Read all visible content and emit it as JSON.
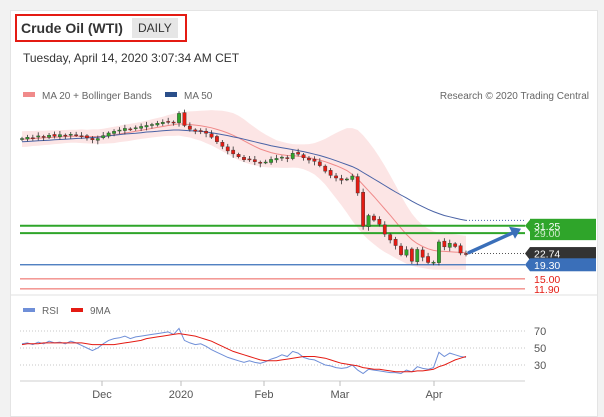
{
  "header": {
    "instrument": "Crude Oil (WTI)",
    "period": "DAILY",
    "datetime": "Tuesday, April 14, 2020 3:07:34 AM CET"
  },
  "legend": {
    "ma20_bollinger": "MA 20 + Bollinger Bands",
    "ma50": "MA 50",
    "credit": "Research © 2020 Trading Central",
    "rsi": "RSI",
    "rsi_ma": "9MA"
  },
  "colors": {
    "bullish": "#2fa52a",
    "bearish": "#e41b13",
    "support": "#3a6fb9",
    "ma20": "#f08a8a",
    "ma50": "#4a63a6",
    "bollinger_fill": "#fbe0e0",
    "rsi": "#6f8fd8",
    "rsi_ma": "#e41b13",
    "arrow": "#3a6fb9",
    "last_price_tag": "#333333"
  },
  "chart_data": [
    {
      "type": "candlestick",
      "title": "Crude Oil (WTI)",
      "x_ticks": [
        "Dec",
        "2020",
        "Feb",
        "Mar",
        "Apr"
      ],
      "levels": {
        "resistance_1": 31.25,
        "resistance_2": 29.0,
        "last_price": 22.74,
        "support_1": 19.3,
        "support_2": 15.0,
        "support_3": 11.9
      },
      "level_labels": {
        "resistance_1": "31.25",
        "resistance_2": "29.00",
        "last_price": "22.74",
        "support_1": "19.30",
        "support_2": "15.00",
        "support_3": "11.90"
      },
      "forecast_direction": "up",
      "y_range": [
        8,
        70
      ],
      "closes": [
        58.0,
        58.4,
        58.2,
        58.8,
        58.5,
        59.0,
        58.7,
        59.2,
        58.9,
        59.3,
        59.0,
        58.6,
        58.2,
        57.6,
        58.0,
        58.9,
        59.7,
        60.2,
        60.6,
        61.1,
        60.8,
        61.3,
        61.7,
        62.0,
        62.3,
        62.7,
        63.0,
        63.2,
        63.0,
        65.7,
        62.0,
        60.8,
        60.2,
        60.4,
        59.6,
        58.4,
        57.0,
        55.6,
        54.2,
        53.3,
        52.4,
        51.5,
        51.7,
        50.9,
        50.4,
        50.8,
        51.6,
        51.9,
        52.3,
        52.0,
        53.5,
        53.2,
        52.1,
        51.4,
        51.0,
        49.7,
        48.0,
        46.7,
        45.9,
        45.2,
        45.6,
        46.5,
        41.3,
        31.1,
        34.4,
        33.0,
        31.7,
        28.7,
        26.9,
        25.2,
        22.4,
        23.9,
        20.4,
        24.0,
        21.6,
        20.0,
        20.1,
        26.3,
        24.8,
        25.9,
        24.9,
        22.9,
        22.74
      ],
      "ma50": [
        57.0,
        57.1,
        57.2,
        57.3,
        57.4,
        57.5,
        57.6,
        57.7,
        57.8,
        57.9,
        58.0,
        58.1,
        58.2,
        58.3,
        58.4,
        58.6,
        58.8,
        59.0,
        59.2,
        59.4,
        59.5,
        59.6,
        59.8,
        60.0,
        60.1,
        60.2,
        60.4,
        60.5,
        60.6,
        60.6,
        60.5,
        60.4,
        60.3,
        60.2,
        60.0,
        59.8,
        59.5,
        59.2,
        58.9,
        58.5,
        58.2,
        57.8,
        57.4,
        57.0,
        56.6,
        56.2,
        55.8,
        55.5,
        55.2,
        54.9,
        54.6,
        54.3,
        54.0,
        53.6,
        53.2,
        52.8,
        52.3,
        51.8,
        51.2,
        50.6,
        50.0,
        49.4,
        48.6,
        47.6,
        46.6,
        45.6,
        44.6,
        43.6,
        42.6,
        41.6,
        40.7,
        39.8,
        38.8,
        37.9,
        37.1,
        36.3,
        35.6,
        35.0,
        34.4,
        34.0,
        33.6,
        33.2,
        32.9
      ],
      "ma20": [
        57.8,
        57.9,
        58.0,
        58.1,
        58.2,
        58.3,
        58.4,
        58.5,
        58.6,
        58.7,
        58.7,
        58.7,
        58.6,
        58.6,
        58.6,
        58.7,
        58.9,
        59.1,
        59.4,
        59.7,
        59.9,
        60.2,
        60.5,
        60.8,
        61.1,
        61.4,
        61.7,
        62.0,
        62.2,
        62.5,
        62.4,
        62.3,
        62.1,
        61.9,
        61.6,
        61.3,
        60.8,
        60.3,
        59.7,
        59.0,
        58.2,
        57.3,
        56.4,
        55.6,
        54.8,
        54.2,
        53.7,
        53.3,
        53.0,
        52.8,
        52.7,
        52.6,
        52.4,
        52.1,
        51.8,
        51.4,
        50.9,
        50.3,
        49.7,
        49.0,
        48.2,
        47.0,
        45.6,
        43.8,
        42.0,
        40.2,
        38.3,
        36.4,
        34.5,
        32.5,
        30.5,
        28.6,
        27.0,
        25.8,
        24.9,
        24.2,
        23.7,
        23.5,
        23.4,
        23.3,
        23.2,
        23.1,
        23.0
      ],
      "band_width": [
        2.4,
        2.4,
        2.3,
        2.3,
        2.2,
        2.2,
        2.1,
        2.1,
        2.0,
        2.0,
        2.0,
        2.1,
        2.1,
        2.2,
        2.2,
        2.3,
        2.4,
        2.5,
        2.5,
        2.6,
        2.6,
        2.6,
        2.6,
        2.7,
        2.8,
        2.9,
        3.0,
        3.2,
        3.4,
        3.6,
        3.8,
        4.0,
        4.3,
        4.6,
        5.0,
        5.4,
        5.8,
        6.2,
        6.5,
        6.8,
        6.8,
        6.6,
        6.2,
        5.8,
        5.4,
        5.0,
        4.6,
        4.2,
        4.0,
        3.8,
        3.6,
        3.6,
        3.8,
        4.2,
        4.8,
        5.8,
        7.0,
        8.5,
        10.0,
        11.5,
        13.0,
        14.2,
        15.0,
        15.2,
        15.0,
        14.6,
        14.0,
        13.2,
        12.2,
        11.2,
        10.0,
        9.0,
        8.0,
        7.2,
        6.6,
        6.2,
        5.9,
        5.7,
        5.6,
        5.5,
        5.4,
        5.3,
        5.2
      ]
    },
    {
      "type": "line",
      "title": "RSI",
      "y_ticks": [
        70,
        50,
        30
      ],
      "ylim": [
        10,
        80
      ],
      "series": [
        {
          "name": "RSI",
          "values": [
            55,
            56,
            54,
            57,
            55,
            58,
            56,
            57,
            55,
            58,
            56,
            53,
            50,
            47,
            50,
            55,
            59,
            61,
            62,
            64,
            61,
            63,
            64,
            65,
            66,
            67,
            68,
            69,
            66,
            73,
            59,
            56,
            54,
            55,
            52,
            48,
            45,
            42,
            39,
            37,
            35,
            33,
            35,
            33,
            32,
            34,
            37,
            39,
            42,
            40,
            46,
            44,
            39,
            37,
            36,
            33,
            30,
            29,
            27,
            26,
            27,
            30,
            24,
            20,
            25,
            24,
            23,
            22,
            21,
            21,
            20,
            24,
            22,
            28,
            26,
            25,
            27,
            45,
            40,
            44,
            42,
            40,
            39
          ]
        },
        {
          "name": "9MA",
          "values": [
            54,
            55,
            55,
            55,
            56,
            56,
            56,
            56,
            56,
            56,
            56,
            56,
            55,
            54,
            54,
            54,
            54,
            54,
            55,
            56,
            57,
            58,
            59,
            61,
            62,
            63,
            64,
            65,
            66,
            67,
            66,
            65,
            64,
            62,
            60,
            58,
            55,
            52,
            49,
            46,
            44,
            42,
            40,
            38,
            36,
            35,
            35,
            35,
            36,
            37,
            38,
            39,
            40,
            40,
            40,
            39,
            38,
            36,
            34,
            32,
            31,
            30,
            29,
            27,
            26,
            25,
            25,
            24,
            23,
            22,
            22,
            22,
            22,
            23,
            23,
            24,
            25,
            28,
            30,
            33,
            36,
            38,
            40
          ]
        }
      ]
    }
  ]
}
